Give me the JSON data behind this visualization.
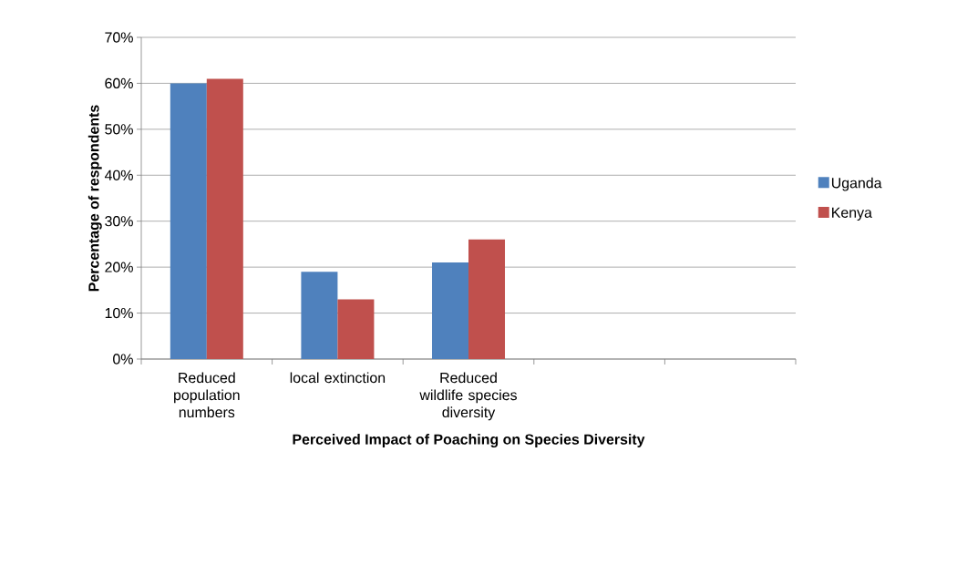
{
  "chart_data": {
    "type": "bar",
    "xlabel": "Perceived Impact of Poaching on Species Diversity",
    "ylabel": "Percentage of respondents",
    "categories": [
      "Reduced population numbers",
      "local extinction",
      "Reduced wildlife species diversity",
      null,
      null
    ],
    "series": [
      {
        "name": "Uganda",
        "color": "#4f81bd",
        "values": [
          60,
          19,
          21,
          null,
          null
        ]
      },
      {
        "name": "Kenya",
        "color": "#c0504d",
        "values": [
          61,
          13,
          26,
          null,
          null
        ]
      }
    ],
    "ylim": [
      0,
      70
    ],
    "yticks": [
      {
        "value": 0,
        "label": "0%"
      },
      {
        "value": 10,
        "label": "10%"
      },
      {
        "value": 20,
        "label": "20%"
      },
      {
        "value": 30,
        "label": "30%"
      },
      {
        "value": 40,
        "label": "40%"
      },
      {
        "value": 50,
        "label": "50%"
      },
      {
        "value": 60,
        "label": "60%"
      },
      {
        "value": 70,
        "label": "70%"
      }
    ],
    "grid": "y",
    "legend": "right"
  }
}
